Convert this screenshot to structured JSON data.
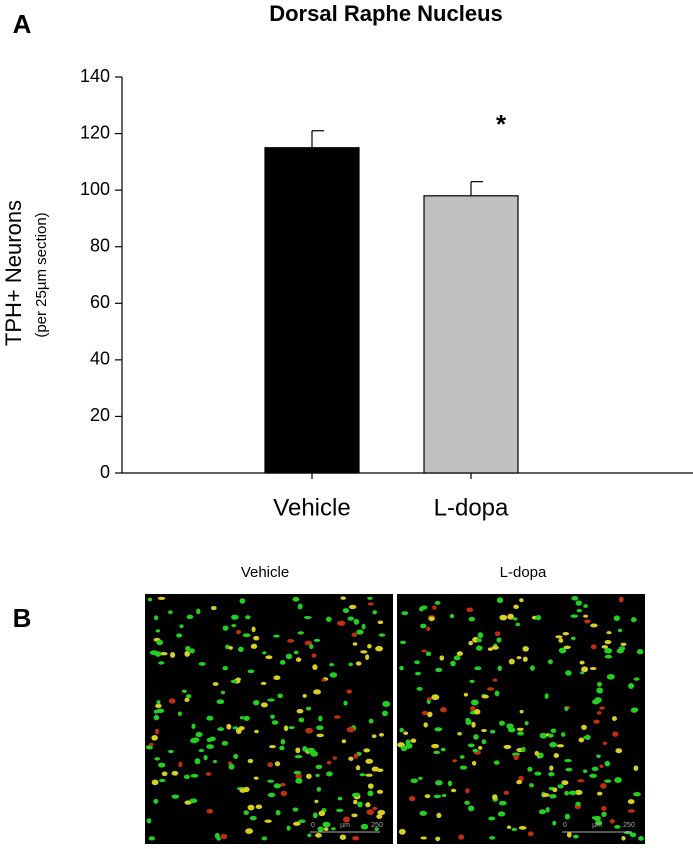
{
  "panel_labels": [
    "A",
    "B"
  ],
  "chart_data": {
    "type": "bar",
    "title": "Dorsal Raphe Nucleus",
    "ylabel": "TPH+ Neurons",
    "ylabel_sub": "(per 25µm section)",
    "categories": [
      "Vehicle",
      "L-dopa"
    ],
    "values": [
      115,
      98
    ],
    "errors": [
      6,
      5
    ],
    "colors": [
      "#000000",
      "#c0c0c0"
    ],
    "annotations": [
      "*"
    ],
    "ylim": [
      0,
      140
    ],
    "yticks": [
      0,
      20,
      40,
      60,
      80,
      100,
      120,
      140
    ],
    "grid": false
  },
  "images": {
    "captions": [
      "Vehicle",
      "L-dopa"
    ],
    "scale_bar": [
      "0",
      "µm",
      "250"
    ]
  }
}
